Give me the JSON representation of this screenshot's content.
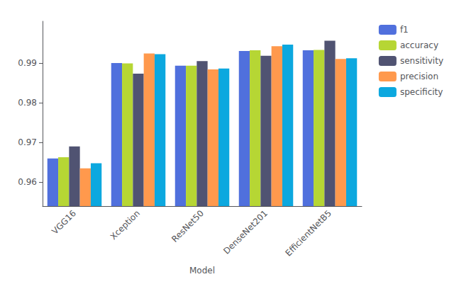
{
  "chart_data": {
    "type": "bar",
    "categories": [
      "VGG16",
      "Xception",
      "ResNet50",
      "DenseNet201",
      "EfficientNetB5"
    ],
    "series": [
      {
        "name": "f1",
        "values": [
          0.966,
          0.99,
          0.9893,
          0.993,
          0.9932
        ]
      },
      {
        "name": "accuracy",
        "values": [
          0.9663,
          0.9899,
          0.9893,
          0.9932,
          0.9933
        ]
      },
      {
        "name": "sensitivity",
        "values": [
          0.969,
          0.9873,
          0.9905,
          0.9918,
          0.9956
        ]
      },
      {
        "name": "precision",
        "values": [
          0.9635,
          0.9924,
          0.9884,
          0.9942,
          0.991
        ]
      },
      {
        "name": "specificity",
        "values": [
          0.9648,
          0.9922,
          0.9886,
          0.9946,
          0.9912
        ]
      }
    ],
    "xlabel": "Model",
    "ylim": [
      0.954,
      1.0005
    ],
    "yticks": [
      0.96,
      0.97,
      0.98,
      0.99
    ],
    "grid": false,
    "legend": "right"
  }
}
